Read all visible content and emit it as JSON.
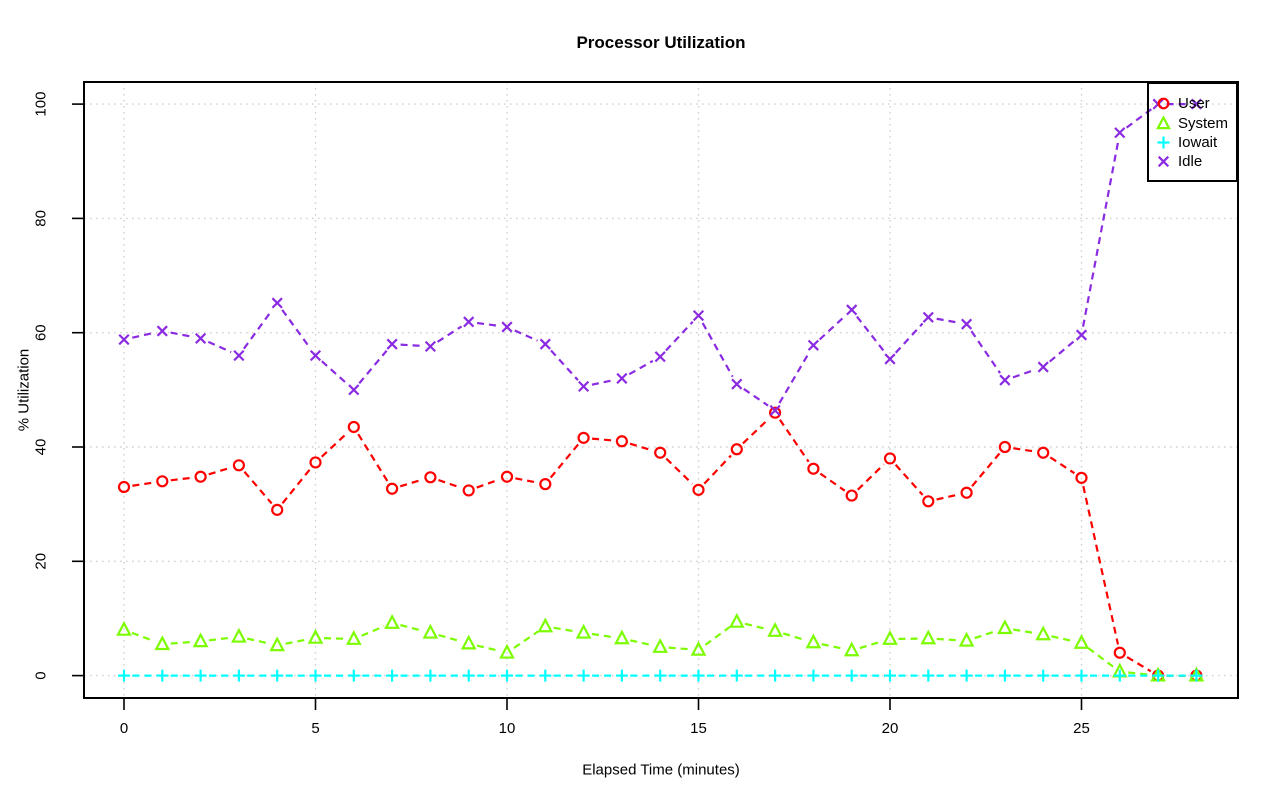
{
  "chart": {
    "title": "Processor Utilization",
    "xlabel": "Elapsed Time (minutes)",
    "ylabel": "% Utilization"
  },
  "chart_data": {
    "type": "line",
    "title": "Processor Utilization",
    "xlabel": "Elapsed Time (minutes)",
    "ylabel": "% Utilization",
    "x": [
      0,
      1,
      2,
      3,
      4,
      5,
      6,
      7,
      8,
      9,
      10,
      11,
      12,
      13,
      14,
      15,
      16,
      17,
      18,
      19,
      20,
      21,
      22,
      23,
      24,
      25,
      26,
      27,
      28
    ],
    "x_ticks": [
      0,
      5,
      10,
      15,
      20,
      25
    ],
    "y_ticks": [
      0,
      20,
      40,
      60,
      80,
      100
    ],
    "xlim": [
      0,
      28
    ],
    "ylim": [
      0,
      100
    ],
    "grid": true,
    "grid_style": "dotted",
    "grid_color": "#d2d2d2",
    "axis_color": "#000000",
    "line_style": "dashed",
    "legend_position": "top-right",
    "series": [
      {
        "name": "User",
        "color": "#ff0000",
        "marker": "circle",
        "values": [
          33,
          34,
          34.8,
          36.8,
          29,
          37.3,
          43.5,
          32.7,
          34.7,
          32.4,
          34.8,
          33.5,
          41.6,
          41,
          39,
          32.5,
          39.6,
          46,
          36.2,
          31.5,
          38,
          30.5,
          32,
          40,
          39,
          34.6,
          4,
          0,
          0
        ]
      },
      {
        "name": "System",
        "color": "#7cfc00",
        "marker": "triangle",
        "values": [
          8,
          5.5,
          6,
          6.8,
          5.3,
          6.6,
          6.4,
          9.2,
          7.5,
          5.6,
          4,
          8.6,
          7.5,
          6.5,
          5,
          4.5,
          9.4,
          7.8,
          5.8,
          4.4,
          6.4,
          6.5,
          6.1,
          8.3,
          7.2,
          5.7,
          0.7,
          0,
          0
        ]
      },
      {
        "name": "Iowait",
        "color": "#00ffff",
        "marker": "plus",
        "values": [
          0,
          0,
          0,
          0,
          0,
          0,
          0,
          0,
          0,
          0,
          0,
          0,
          0,
          0,
          0,
          0,
          0,
          0,
          0,
          0,
          0,
          0,
          0,
          0,
          0,
          0,
          0,
          0,
          0
        ]
      },
      {
        "name": "Idle",
        "color": "#8a2be2",
        "marker": "x",
        "values": [
          58.8,
          60.3,
          59,
          56,
          65.2,
          56,
          50,
          58,
          57.6,
          61.9,
          61,
          58,
          50.6,
          52,
          55.8,
          63,
          51,
          46.4,
          57.8,
          64,
          55.4,
          62.7,
          61.5,
          51.7,
          54,
          59.6,
          95,
          100,
          100
        ]
      }
    ]
  },
  "legend": {
    "items": [
      {
        "label": "User",
        "marker": "circle"
      },
      {
        "label": "System",
        "marker": "triangle"
      },
      {
        "label": "Iowait",
        "marker": "plus"
      },
      {
        "label": "Idle",
        "marker": "x"
      }
    ]
  }
}
